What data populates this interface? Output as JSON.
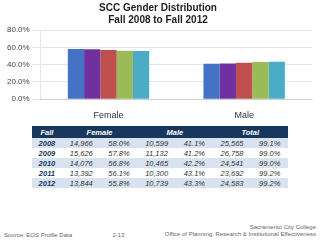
{
  "chart_data": {
    "type": "bar",
    "title": "SCC Gender Distribution\nFall 2008 to Fall 2012",
    "categories": [
      "Female",
      "Male"
    ],
    "series": [
      {
        "color": "#4472C4",
        "values": [
          58.0,
          41.1
        ]
      },
      {
        "color": "#7030A0",
        "values": [
          57.8,
          41.2
        ]
      },
      {
        "color": "#C0504D",
        "values": [
          56.8,
          42.2
        ]
      },
      {
        "color": "#9BBB59",
        "values": [
          56.1,
          43.1
        ]
      },
      {
        "color": "#4BACC6",
        "values": [
          55.8,
          43.3
        ]
      }
    ],
    "ylim": [
      0,
      80
    ],
    "yticks": [
      {
        "value": 0,
        "label": "0.0%"
      },
      {
        "value": 20,
        "label": "20.0%"
      },
      {
        "value": 40,
        "label": "40.0%"
      },
      {
        "value": 60,
        "label": "60.0%"
      },
      {
        "value": 80,
        "label": "80.0%"
      }
    ],
    "grid": true,
    "table": {
      "header": [
        "Fall",
        "Female",
        "Male",
        "Total"
      ],
      "rows": [
        [
          "2008",
          "14,966",
          "58.0%",
          "10,599",
          "41.1%",
          "25,565",
          "99.1%"
        ],
        [
          "2009",
          "15,626",
          "57.8%",
          "11,132",
          "41.2%",
          "26,758",
          "99.0%"
        ],
        [
          "2010",
          "14,076",
          "56.8%",
          "10,465",
          "42.2%",
          "24,541",
          "99.0%"
        ],
        [
          "2011",
          "13,392",
          "56.1%",
          "10,300",
          "43.1%",
          "23,692",
          "99.2%"
        ],
        [
          "2012",
          "13,844",
          "55.8%",
          "10,739",
          "43.3%",
          "24,583",
          "99.2%"
        ]
      ]
    },
    "source_text": "Source: EOS Profile Data",
    "page_text": "2-13",
    "institution_text": "Sacramento City College\nOffice of Planning, Research & Institutional Effectiveness"
  }
}
